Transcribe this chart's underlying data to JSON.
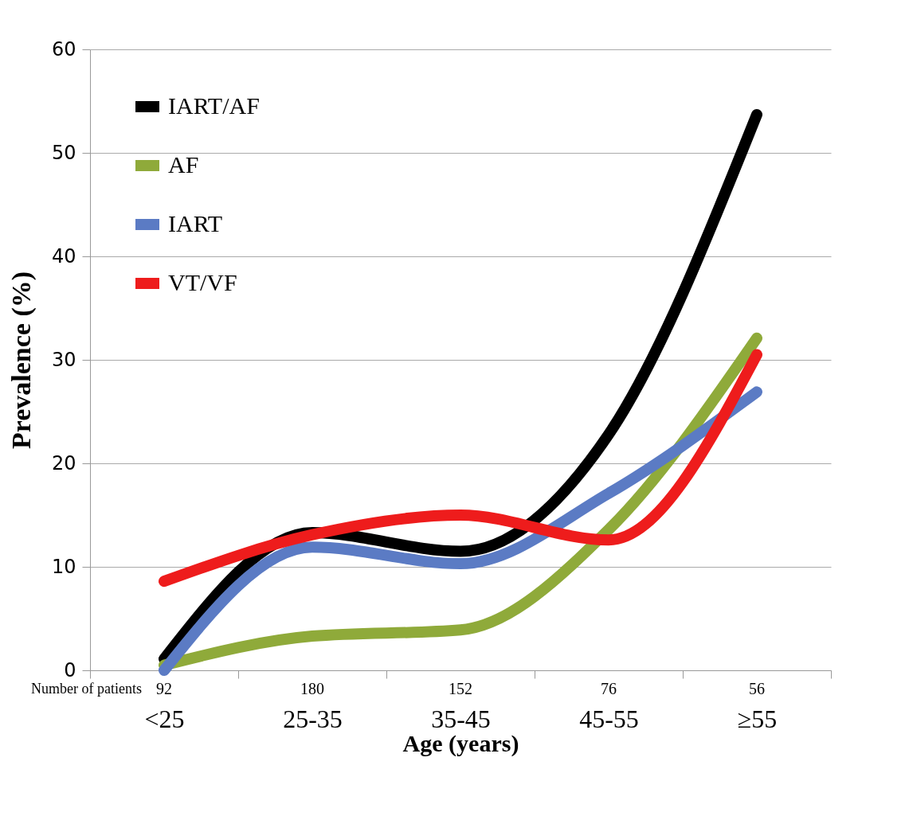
{
  "chart_data": {
    "type": "line",
    "xlabel": "Age (years)",
    "ylabel": "Prevalence (%)",
    "categories": [
      "<25",
      "25-35",
      "35-45",
      "45-55",
      "≥55"
    ],
    "series": [
      {
        "name": "IART/AF",
        "color": "#000000",
        "values": [
          1.1,
          13.3,
          11.5,
          22.8,
          53.7
        ]
      },
      {
        "name": "AF",
        "color": "#8faa3a",
        "values": [
          0.5,
          3.3,
          3.9,
          13.6,
          32.1
        ]
      },
      {
        "name": "IART",
        "color": "#5b7bc4",
        "values": [
          0,
          11.9,
          10.3,
          17.1,
          26.9
        ]
      },
      {
        "name": "VT/VF",
        "color": "#ee1c1c",
        "values": [
          8.6,
          13.1,
          15,
          12.6,
          30.5
        ]
      }
    ],
    "ylim": [
      0,
      60
    ],
    "yticks": [
      0,
      10,
      20,
      30,
      40,
      50,
      60
    ],
    "grid": "y",
    "legend": "top left",
    "marker": "none",
    "line_style": "solid",
    "annotations": [
      "Number of patients",
      "92",
      "180",
      "152",
      "76",
      "56"
    ]
  }
}
